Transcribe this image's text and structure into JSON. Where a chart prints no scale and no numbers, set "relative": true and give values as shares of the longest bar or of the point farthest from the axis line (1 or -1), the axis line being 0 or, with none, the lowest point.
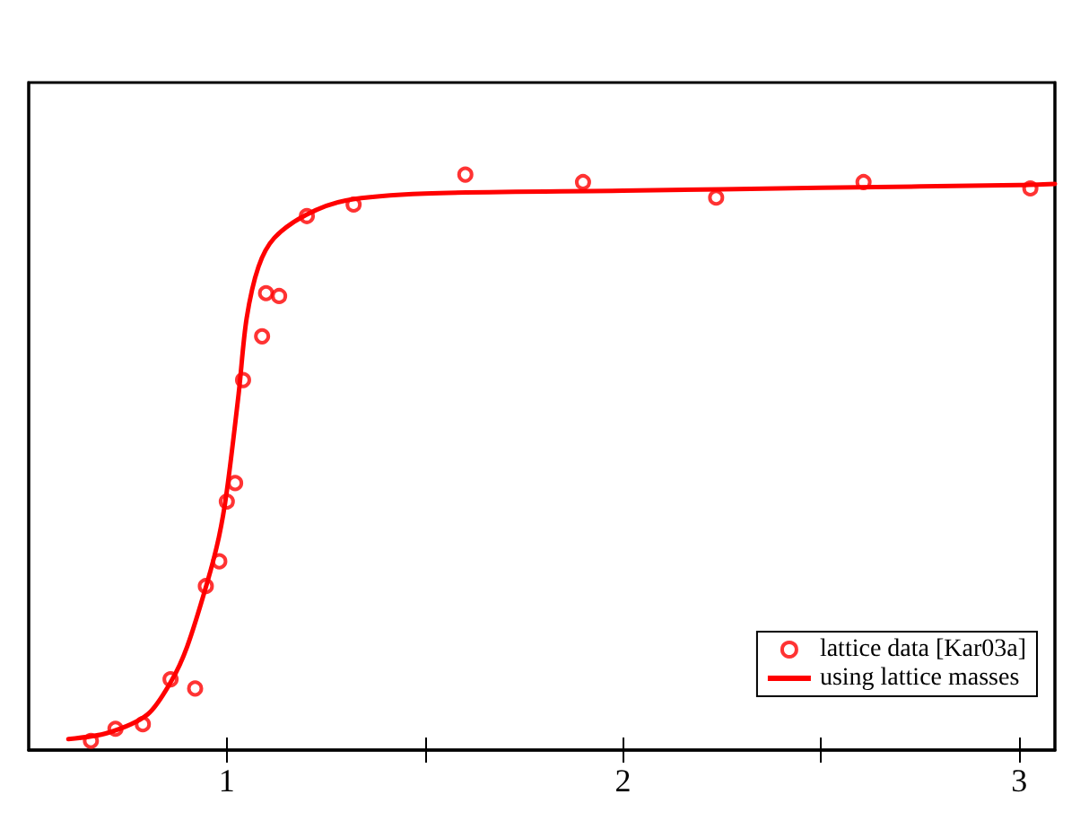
{
  "chart_data": {
    "type": "scatter",
    "relative": true,
    "xlim": [
      0.5,
      3.09
    ],
    "xticks": [
      1,
      {
        "value": 1.5,
        "label": null
      },
      2,
      {
        "value": 2.5,
        "label": null
      },
      3
    ],
    "tick_labels": "x",
    "legend": "bottom right",
    "grid": false,
    "series": [
      {
        "name": "lattice data [Kar03a]",
        "color": "#ff0000",
        "marker": "circle",
        "x": [
          0.657,
          0.719,
          0.788,
          0.858,
          0.92,
          0.947,
          0.981,
          1.0,
          1.021,
          1.041,
          1.089,
          1.099,
          1.132,
          1.202,
          1.32,
          1.602,
          1.899,
          2.235,
          2.607,
          3.028
        ],
        "values": [
          0.016,
          0.037,
          0.045,
          0.123,
          0.107,
          0.285,
          0.328,
          0.432,
          0.464,
          0.643,
          0.719,
          0.794,
          0.789,
          0.928,
          0.948,
          1.0,
          0.987,
          0.96,
          0.987,
          0.976
        ]
      },
      {
        "name": "using lattice masses",
        "type": "line",
        "color": "#ff0000",
        "marker": "none",
        "line_style": "solid",
        "x": [
          0.6,
          0.7,
          0.8,
          0.86,
          0.9,
          0.95,
          0.98,
          1.0,
          1.03,
          1.05,
          1.08,
          1.12,
          1.2,
          1.3,
          1.5,
          2.0,
          2.5,
          3.0,
          3.09
        ],
        "values": [
          0.019,
          0.03,
          0.062,
          0.12,
          0.18,
          0.29,
          0.37,
          0.45,
          0.62,
          0.75,
          0.84,
          0.89,
          0.93,
          0.955,
          0.967,
          0.972,
          0.977,
          0.982,
          0.984
        ]
      }
    ]
  }
}
